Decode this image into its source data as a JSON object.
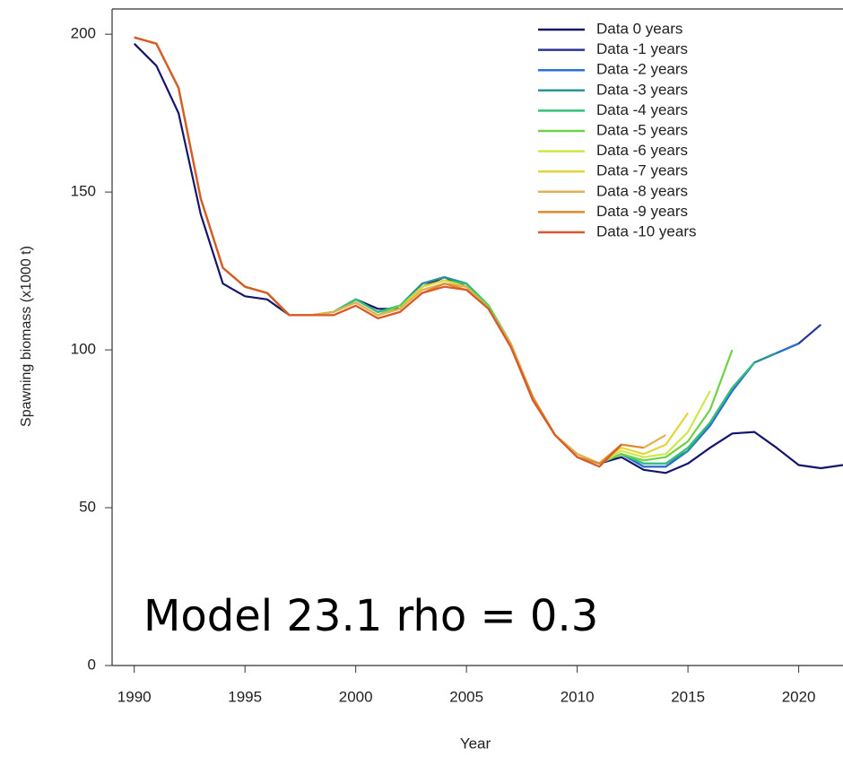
{
  "chart_data": {
    "type": "line",
    "annotation": "Model 23.1 rho = 0.3",
    "x_label": "Year",
    "y_label": "Spawning biomass (x1000 t)",
    "xlim": [
      1989,
      2022
    ],
    "xticks": [
      1990,
      1995,
      2000,
      2005,
      2010,
      2015,
      2020
    ],
    "ylim": [
      0,
      208
    ],
    "yticks": [
      0,
      50,
      100,
      150,
      200
    ],
    "legend": "top-right",
    "x": [
      1990,
      1991,
      1992,
      1993,
      1994,
      1995,
      1996,
      1997,
      1998,
      1999,
      2000,
      2001,
      2002,
      2003,
      2004,
      2005,
      2006,
      2007,
      2008,
      2009,
      2010,
      2011,
      2012,
      2013,
      2014,
      2015,
      2016,
      2017,
      2018,
      2019,
      2020,
      2021,
      2022
    ],
    "series": [
      {
        "name": "Data 0 years",
        "color": "#15166b",
        "values": [
          197,
          190,
          175,
          143,
          121,
          117,
          116,
          111,
          111,
          112,
          116,
          113,
          113,
          120,
          123,
          120,
          113,
          101,
          85,
          73,
          67,
          64,
          66,
          62,
          61,
          64,
          69,
          73.5,
          74,
          69,
          63.5,
          62.5,
          63.5
        ]
      },
      {
        "name": "Data -1 years",
        "color": "#2a3596",
        "values": [
          199,
          197,
          183,
          148,
          126,
          120,
          118,
          111,
          111,
          112,
          116,
          112,
          114,
          121,
          123,
          121,
          114,
          102,
          85,
          73,
          67,
          64,
          67,
          63,
          63,
          68,
          76,
          87,
          96,
          99,
          102,
          108,
          null
        ]
      },
      {
        "name": "Data -2 years",
        "color": "#2c6fd6",
        "values": [
          199,
          197,
          183,
          148,
          126,
          120,
          118,
          111,
          111,
          112,
          116,
          112,
          114,
          121,
          123,
          121,
          114,
          102,
          85,
          73,
          67,
          64,
          67,
          63,
          63,
          68,
          76,
          87,
          96,
          99,
          102,
          null,
          null
        ]
      },
      {
        "name": "Data -3 years",
        "color": "#2b9496",
        "values": [
          199,
          197,
          183,
          148,
          126,
          120,
          118,
          111,
          111,
          112,
          116,
          112,
          114,
          121,
          123,
          121,
          114,
          102,
          85,
          73,
          67,
          64,
          67,
          64,
          64,
          68,
          77,
          88,
          96,
          99,
          null,
          null,
          null
        ]
      },
      {
        "name": "Data -4 years",
        "color": "#35c07a",
        "values": [
          199,
          197,
          183,
          148,
          126,
          120,
          118,
          111,
          111,
          112,
          116,
          112,
          114,
          120,
          122,
          121,
          114,
          102,
          85,
          73,
          67,
          64,
          67,
          64,
          64,
          69,
          77,
          88,
          96,
          null,
          null,
          null,
          null
        ]
      },
      {
        "name": "Data -5 years",
        "color": "#6cd246",
        "values": [
          199,
          197,
          183,
          148,
          126,
          120,
          118,
          111,
          111,
          112,
          115,
          111,
          114,
          120,
          122,
          120,
          114,
          102,
          85,
          73,
          67,
          64,
          67,
          65,
          66,
          71,
          81,
          100,
          null,
          null,
          null,
          null,
          null
        ]
      },
      {
        "name": "Data -6 years",
        "color": "#cde84c",
        "values": [
          199,
          197,
          183,
          148,
          126,
          120,
          118,
          111,
          111,
          112,
          115,
          111,
          113,
          120,
          122,
          120,
          113,
          102,
          85,
          73,
          67,
          64,
          68,
          66,
          67,
          74,
          87,
          null,
          null,
          null,
          null,
          null,
          null
        ]
      },
      {
        "name": "Data -7 years",
        "color": "#e4d63a",
        "values": [
          199,
          197,
          183,
          148,
          126,
          120,
          118,
          111,
          111,
          112,
          115,
          111,
          113,
          120,
          122,
          120,
          113,
          102,
          85,
          73,
          67,
          64,
          69,
          67,
          70,
          80,
          null,
          null,
          null,
          null,
          null,
          null,
          null
        ]
      },
      {
        "name": "Data -8 years",
        "color": "#e0b052",
        "values": [
          199,
          197,
          183,
          148,
          126,
          120,
          118,
          111,
          111,
          112,
          115,
          111,
          113,
          119,
          121,
          120,
          113,
          102,
          85,
          73,
          67,
          64,
          70,
          69,
          73,
          null,
          null,
          null,
          null,
          null,
          null,
          null,
          null
        ]
      },
      {
        "name": "Data -9 years",
        "color": "#e08a30",
        "values": [
          199,
          197,
          183,
          148,
          126,
          120,
          118,
          111,
          111,
          111,
          114,
          110,
          112,
          118,
          121,
          119,
          113,
          101,
          85,
          73,
          66,
          64,
          70,
          69,
          null,
          null,
          null,
          null,
          null,
          null,
          null,
          null,
          null
        ]
      },
      {
        "name": "Data -10 years",
        "color": "#d8592a",
        "values": [
          199,
          197,
          183,
          148,
          126,
          120,
          118,
          111,
          111,
          111,
          114,
          110,
          112,
          118,
          120,
          119,
          113,
          101,
          84,
          73,
          66,
          63,
          70,
          null,
          null,
          null,
          null,
          null,
          null,
          null,
          null,
          null,
          null
        ]
      }
    ]
  }
}
